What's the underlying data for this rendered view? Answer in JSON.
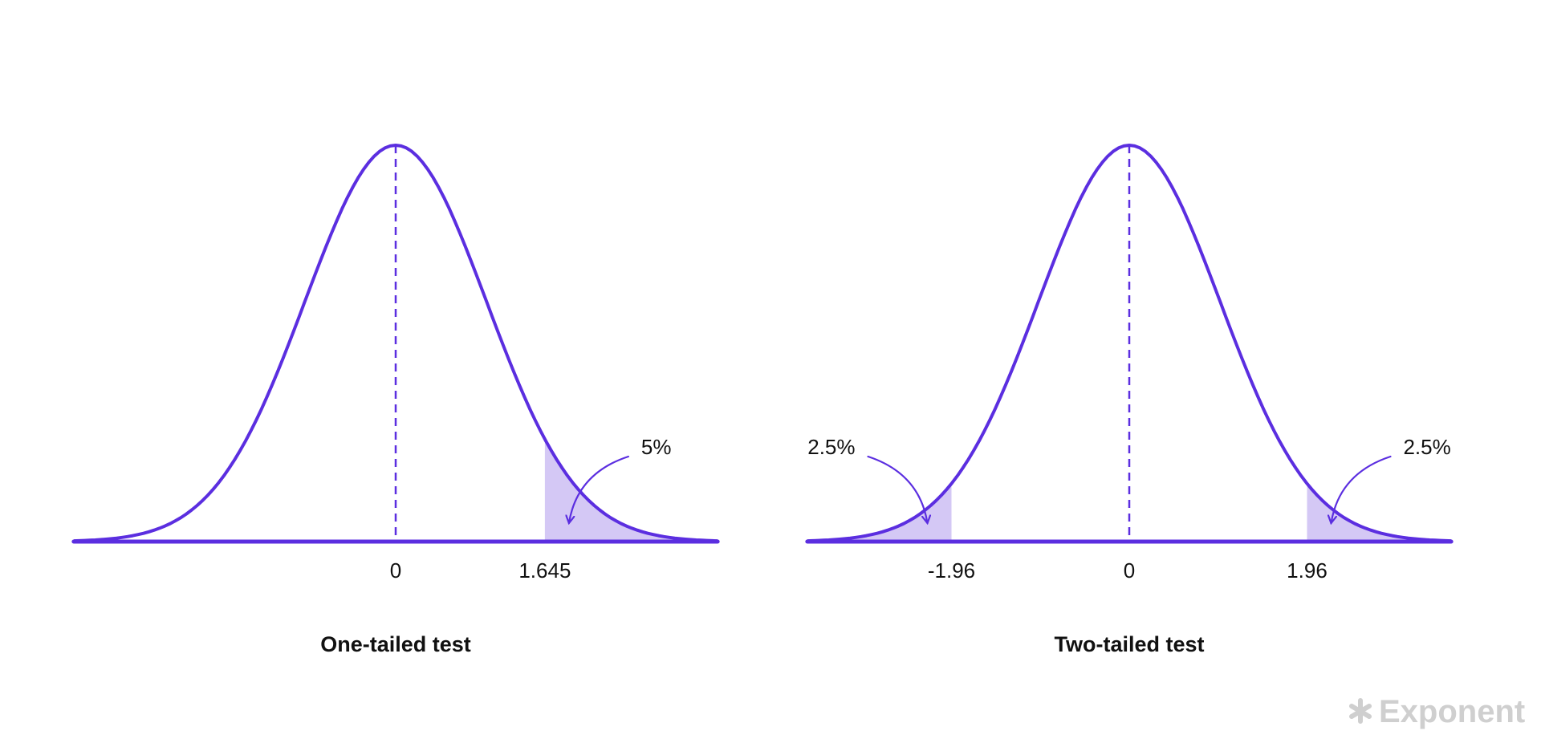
{
  "panels": [
    {
      "title": "One-tailed test",
      "ticks": [
        0,
        1.645
      ],
      "annotations": [
        "5%"
      ]
    },
    {
      "title": "Two-tailed test",
      "ticks": [
        -1.96,
        0,
        1.96
      ],
      "annotations": [
        "2.5%",
        "2.5%"
      ]
    }
  ],
  "watermark": "Exponent"
}
